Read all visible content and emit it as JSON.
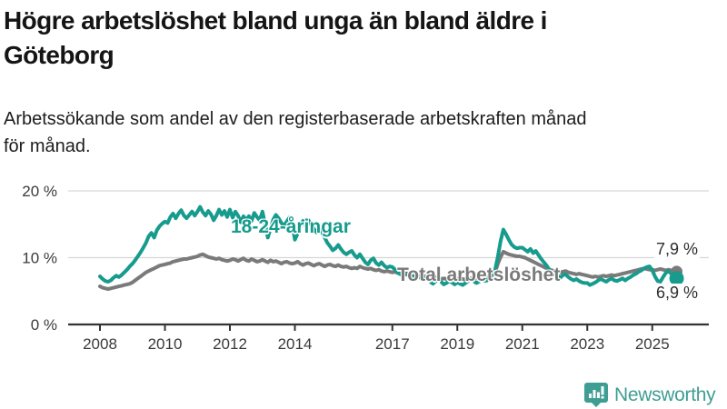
{
  "header": {
    "title_line1": "Högre arbetslöshet bland unga än bland äldre i",
    "title_line2": "Göteborg",
    "subtitle_line1": "Arbetssökande som andel av den registerbaserade arbetskraften månad",
    "subtitle_line2": "för månad."
  },
  "chart_data": {
    "type": "line",
    "title": "Högre arbetslöshet bland unga än bland äldre i Göteborg",
    "subtitle": "Arbetssökande som andel av den registerbaserade arbetskraften månad för månad.",
    "frequency": "monthly",
    "x_start_year": 2008,
    "x_end": "2025-10",
    "x_ticks": [
      2008,
      2010,
      2012,
      2014,
      2017,
      2019,
      2021,
      2023,
      2025
    ],
    "y_ticks": [
      {
        "value": 20,
        "label": "20 %"
      },
      {
        "value": 10,
        "label": "10 %"
      },
      {
        "value": 0,
        "label": "0 %"
      }
    ],
    "ylim": [
      0,
      21
    ],
    "y_unit": "%",
    "grid": true,
    "legend_position": "inline-labels",
    "series": [
      {
        "name": "18-24-åringar",
        "label": "18-24-åringar",
        "color": "#169b8d",
        "end_label": "6,9 %",
        "end_value": 6.9,
        "values": [
          7.2,
          6.8,
          6.5,
          6.4,
          6.6,
          7.0,
          7.3,
          7.1,
          7.4,
          7.8,
          8.2,
          8.7,
          9.1,
          9.6,
          10.2,
          10.8,
          11.5,
          12.2,
          13.2,
          13.7,
          13.0,
          14.1,
          14.7,
          15.1,
          15.4,
          15.2,
          16.1,
          16.6,
          15.9,
          16.6,
          17.1,
          16.3,
          15.9,
          16.4,
          16.9,
          16.3,
          16.9,
          17.6,
          16.8,
          16.3,
          17.0,
          16.5,
          15.6,
          16.3,
          17.2,
          16.4,
          17.0,
          16.1,
          17.2,
          16.0,
          16.9,
          16.3,
          15.3,
          16.2,
          15.6,
          16.2,
          15.5,
          16.7,
          16.1,
          15.6,
          16.9,
          15.0,
          13.0,
          14.4,
          15.7,
          16.4,
          15.9,
          15.2,
          14.8,
          15.4,
          16.0,
          15.1,
          12.7,
          13.6,
          14.7,
          15.5,
          14.8,
          15.6,
          15.0,
          14.3,
          13.8,
          14.4,
          13.8,
          13.0,
          12.2,
          11.7,
          11.1,
          11.4,
          11.9,
          11.3,
          10.8,
          10.5,
          10.8,
          11.0,
          10.4,
          10.0,
          10.5,
          9.9,
          9.3,
          9.0,
          9.6,
          9.9,
          9.2,
          8.9,
          9.3,
          8.8,
          8.5,
          8.7,
          8.6,
          8.2,
          7.8,
          7.5,
          7.9,
          8.2,
          7.7,
          7.3,
          7.0,
          7.4,
          7.1,
          6.8,
          7.1,
          6.8,
          6.4,
          6.1,
          6.5,
          6.8,
          6.4,
          6.0,
          6.2,
          6.5,
          6.3,
          6.0,
          6.3,
          6.1,
          5.9,
          6.2,
          6.5,
          6.8,
          6.5,
          6.2,
          6.4,
          6.7,
          6.5,
          6.6,
          7.0,
          7.5,
          8.3,
          10.2,
          12.5,
          14.2,
          13.5,
          12.7,
          12.0,
          11.6,
          11.4,
          11.5,
          11.5,
          11.2,
          10.9,
          11.3,
          10.7,
          11.0,
          10.4,
          9.8,
          9.3,
          8.8,
          8.2,
          7.8,
          7.5,
          7.3,
          7.0,
          7.4,
          7.5,
          7.1,
          6.8,
          6.6,
          6.8,
          6.5,
          6.3,
          6.2,
          6.2,
          5.9,
          6.1,
          6.3,
          6.6,
          6.8,
          6.6,
          6.4,
          6.7,
          6.9,
          6.6,
          6.5,
          6.7,
          6.9,
          6.6,
          6.9,
          7.1,
          7.4,
          7.6,
          7.9,
          8.1,
          8.4,
          8.6,
          8.7,
          8.1,
          7.2,
          6.5,
          6.4,
          7.1,
          7.7,
          8.0,
          7.6,
          7.1,
          6.9
        ]
      },
      {
        "name": "Total arbetslöshet",
        "label": "Total arbetslöshet",
        "color": "#7a7a7a",
        "end_label": "7,9 %",
        "end_value": 7.9,
        "values": [
          5.7,
          5.5,
          5.4,
          5.3,
          5.4,
          5.5,
          5.6,
          5.7,
          5.8,
          5.9,
          6.0,
          6.1,
          6.3,
          6.6,
          6.9,
          7.2,
          7.5,
          7.8,
          8.0,
          8.2,
          8.4,
          8.6,
          8.8,
          8.9,
          9.0,
          9.1,
          9.2,
          9.4,
          9.5,
          9.6,
          9.7,
          9.8,
          9.8,
          9.9,
          10.0,
          10.1,
          10.2,
          10.4,
          10.5,
          10.3,
          10.1,
          10.0,
          9.9,
          9.8,
          9.9,
          9.7,
          9.6,
          9.5,
          9.6,
          9.8,
          9.7,
          9.5,
          9.7,
          9.9,
          9.6,
          9.5,
          9.8,
          9.6,
          9.4,
          9.5,
          9.7,
          9.5,
          9.3,
          9.6,
          9.4,
          9.5,
          9.3,
          9.1,
          9.3,
          9.4,
          9.2,
          9.1,
          9.2,
          9.4,
          9.1,
          8.9,
          9.1,
          9.2,
          9.0,
          8.8,
          9.0,
          9.1,
          8.9,
          8.7,
          8.9,
          9.0,
          8.8,
          8.7,
          8.9,
          8.7,
          8.6,
          8.7,
          8.5,
          8.4,
          8.5,
          8.4,
          8.7,
          8.5,
          8.4,
          8.3,
          8.4,
          8.2,
          8.1,
          8.2,
          8.0,
          7.9,
          8.0,
          7.9,
          7.8,
          7.9,
          7.7,
          7.6,
          7.7,
          7.5,
          7.4,
          7.5,
          7.4,
          7.3,
          7.4,
          7.3,
          7.2,
          7.3,
          7.1,
          7.0,
          7.1,
          6.9,
          6.8,
          6.9,
          6.8,
          6.7,
          6.8,
          6.7,
          6.8,
          6.9,
          6.8,
          6.7,
          6.8,
          6.9,
          7.0,
          6.9,
          7.0,
          7.1,
          7.0,
          7.1,
          7.2,
          7.4,
          7.9,
          9.1,
          10.1,
          10.9,
          10.7,
          10.5,
          10.4,
          10.3,
          10.2,
          10.2,
          10.1,
          10.0,
          9.8,
          9.6,
          9.4,
          9.2,
          9.0,
          8.8,
          8.6,
          8.4,
          8.2,
          8.1,
          8.0,
          7.9,
          7.8,
          7.9,
          8.0,
          7.8,
          7.7,
          7.6,
          7.5,
          7.6,
          7.5,
          7.4,
          7.3,
          7.2,
          7.1,
          7.2,
          7.1,
          7.2,
          7.3,
          7.2,
          7.3,
          7.4,
          7.3,
          7.4,
          7.5,
          7.6,
          7.7,
          7.8,
          7.9,
          8.0,
          8.1,
          8.2,
          8.3,
          8.4,
          8.3,
          8.2,
          8.2,
          8.1,
          8.2,
          8.3,
          8.2,
          8.1,
          8.2,
          8.1,
          8.0,
          7.9
        ]
      }
    ]
  },
  "branding": {
    "logo_text": "Newsworthy",
    "logo_color": "#3f9e94",
    "logo_icon": "bar-chart-pin"
  },
  "colors": {
    "young": "#169b8d",
    "total": "#7a7a7a",
    "grid": "#d6d6d6",
    "axis": "#333333",
    "tick_text": "#3a3a3a",
    "title": "#151515"
  }
}
